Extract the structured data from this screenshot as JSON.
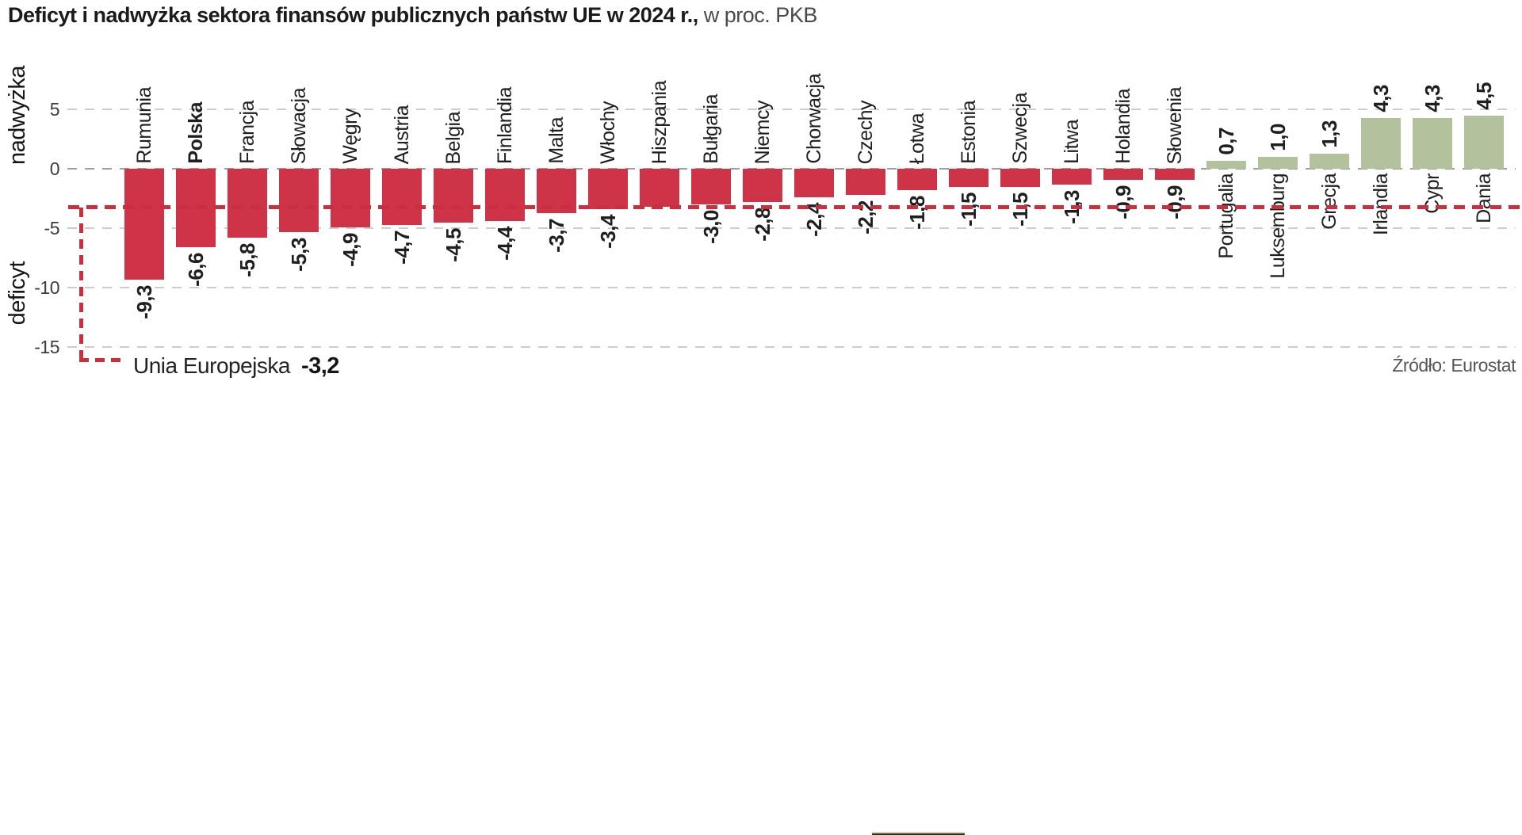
{
  "title": {
    "bold": "Deficyt i nadwyżka sektora finansów publicznych państw UE w 2024 r.,",
    "regular": " w proc. PKB"
  },
  "axis": {
    "surplus_label": "nadwyżka",
    "deficit_label": "deficyt",
    "ticks": [
      "5",
      "0",
      "-5",
      "-10",
      "-15"
    ]
  },
  "eu_reference": {
    "label": "Unia Europejska",
    "value_label": "-3,2",
    "value": -3.2
  },
  "source": "Źródło: Eurostat",
  "colors": {
    "deficit_bar": "#ce3347",
    "surplus_bar": "#b3c29c",
    "eu_line": "#c9303f",
    "grid": "#cfcbcb",
    "zero_grid": "#a29e9e"
  },
  "chart_data": {
    "type": "bar",
    "title": "Deficyt i nadwyżka sektora finansów publicznych państw UE w 2024 r., w proc. PKB",
    "xlabel": "",
    "ylabel": "proc. PKB",
    "ylim": [
      -17,
      7
    ],
    "yticks": [
      5,
      0,
      -5,
      -10,
      -15
    ],
    "grid": "dashed-horizontal",
    "legend": "none",
    "reference_line": {
      "label": "Unia Europejska",
      "value": -3.2,
      "style": "red-dashed"
    },
    "categories": [
      "Rumunia",
      "Polska",
      "Francja",
      "Słowacja",
      "Węgry",
      "Austria",
      "Belgia",
      "Finlandia",
      "Malta",
      "Włochy",
      "Hiszpania",
      "Bułgaria",
      "Niemcy",
      "Chorwacja",
      "Czechy",
      "Łotwa",
      "Estonia",
      "Szwecja",
      "Litwa",
      "Holandia",
      "Słowenia",
      "Portugalia",
      "Luksemburg",
      "Grecja",
      "Irlandia",
      "Cypr",
      "Dania"
    ],
    "values": [
      -9.3,
      -6.6,
      -5.8,
      -5.3,
      -4.9,
      -4.7,
      -4.5,
      -4.4,
      -3.7,
      -3.4,
      -3.2,
      -3.0,
      -2.8,
      -2.4,
      -2.2,
      -1.8,
      -1.5,
      -1.5,
      -1.3,
      -0.9,
      -0.9,
      0.7,
      1.0,
      1.3,
      4.3,
      4.3,
      4.5
    ],
    "value_labels": [
      "-9,3",
      "-6,6",
      "-5,8",
      "-5,3",
      "-4,9",
      "-4,7",
      "-4,5",
      "-4,4",
      "-3,7",
      "-3,4",
      "",
      "-3,0",
      "-2,8",
      "-2,4",
      "-2,2",
      "-1,8",
      "-1,5",
      "-1,5",
      "-1,3",
      "-0,9",
      "-0,9",
      "0,7",
      "1,0",
      "1,3",
      "4,3",
      "4,3",
      "4,5"
    ],
    "bold_categories": [
      "Polska"
    ],
    "negative_color": "#ce3347",
    "positive_color": "#b3c29c"
  }
}
